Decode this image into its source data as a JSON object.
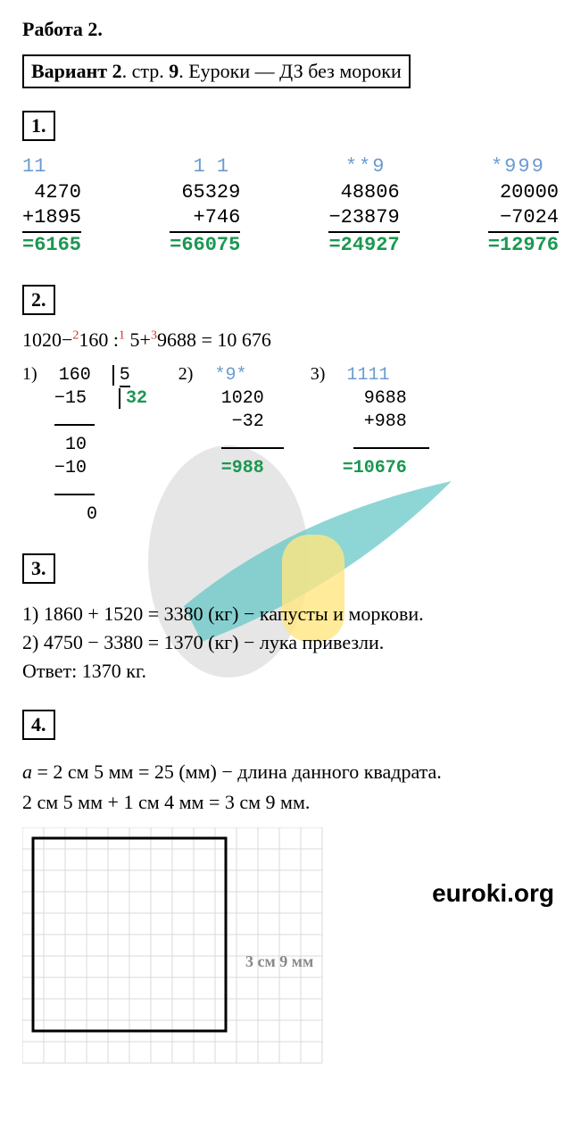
{
  "title": "Работа 2.",
  "header": {
    "variant_bold": "Вариант 2",
    "page": ". стр.",
    "page_num": " 9",
    "rest": ". Еуроки  —  ДЗ без мороки"
  },
  "q1": {
    "num": "1.",
    "cols": [
      {
        "carry": "11   ",
        "a": "4270",
        "op": "+1895",
        "res": "=6165"
      },
      {
        "carry": "1 1 ",
        "a": "65329",
        "op": "+746",
        "res": "=66075"
      },
      {
        "carry": "**9 ",
        "a": "48806",
        "op": "−23879",
        "res": "=24927"
      },
      {
        "carry": "*999 ",
        "a": "20000",
        "op": "−7024",
        "res": "=12976"
      }
    ]
  },
  "q2": {
    "num": "2.",
    "eq_parts": [
      "1020−",
      "2",
      "160 :",
      "1",
      " 5+",
      "3",
      "9688 = 10 676"
    ],
    "step1_label": "1)",
    "div": {
      "dividend": "160",
      "divisor": "5",
      "quotient": "32",
      "l1": "−15",
      "l2": "10",
      "l3": "−10",
      "l4": "0"
    },
    "step2_label": "2)",
    "sub": {
      "carry": "*9*",
      "a": "1020",
      "b": "−32",
      "res": "=988"
    },
    "step3_label": "3)",
    "add": {
      "carry": "1111",
      "a": "9688",
      "b": "+988",
      "res": "=10676"
    }
  },
  "q3": {
    "num": "3.",
    "line1": "1) 1860 + 1520 = 3380 (кг) − капусты и моркови.",
    "line2": "2) 4750 − 3380 = 1370 (кг) − лука привезли.",
    "answer": "Ответ: 1370 кг."
  },
  "q4": {
    "num": "4.",
    "line1_a": "a",
    "line1_rest": " = 2 см 5 мм = 25 (мм) − длина данного квадрата.",
    "line2": "2 см 5 мм + 1 см 4 мм = 3 см 9 мм.",
    "grid_label": "3 см 9 мм"
  },
  "logo": "euroki.org",
  "watermark_colors": {
    "gray": "#d5d5d5",
    "yellow": "#ffe680",
    "teal": "#5ec5c5"
  },
  "grid": {
    "cell": 24,
    "cols": 14,
    "rows": 11,
    "sq_cells": 9,
    "line_color": "#d8d8d8",
    "square_color": "#000"
  }
}
